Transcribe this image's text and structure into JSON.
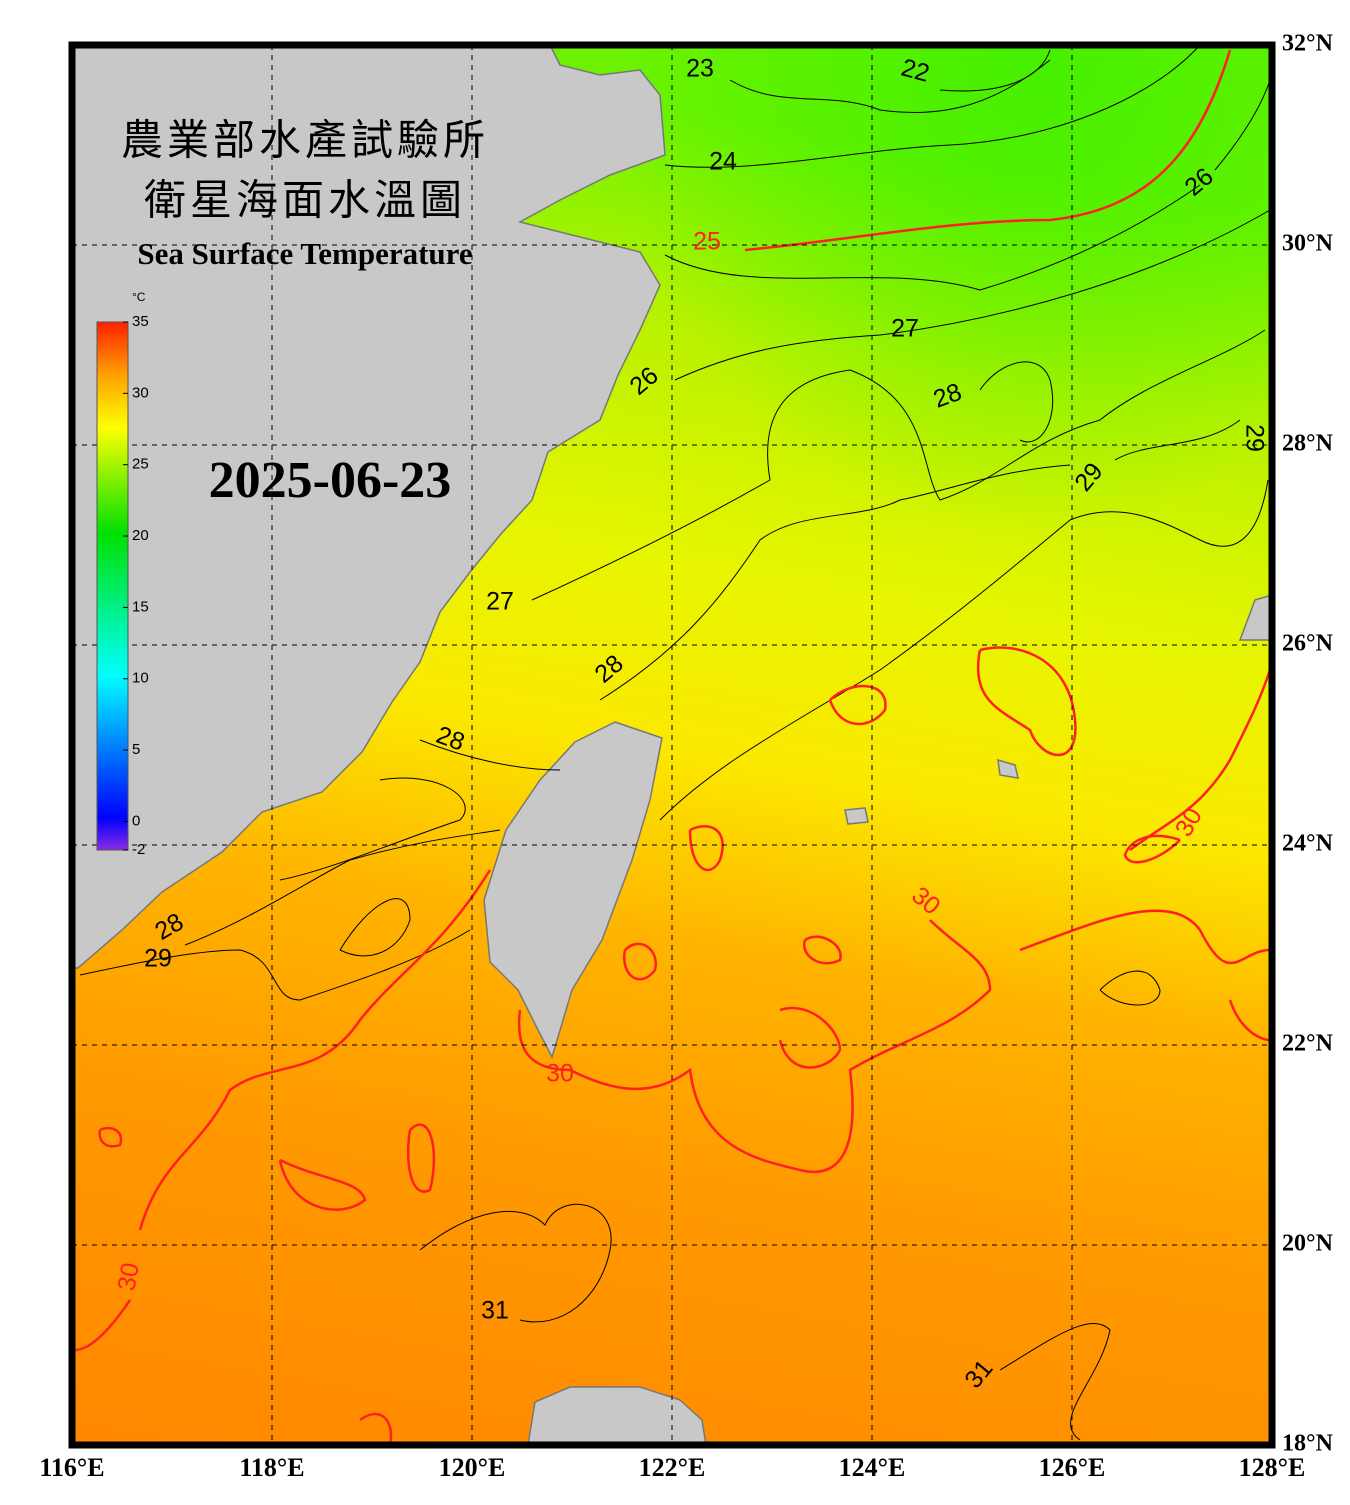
{
  "map": {
    "title": [
      "農業部水產試驗所",
      "衛星海面水溫圖"
    ],
    "subtitle": "Sea Surface Temperature",
    "date": "2025-06-23",
    "xlim": [
      116,
      128
    ],
    "ylim": [
      18,
      32
    ],
    "xticks": [
      {
        "value": 116,
        "label": "116°E"
      },
      {
        "value": 118,
        "label": "118°E"
      },
      {
        "value": 120,
        "label": "120°E"
      },
      {
        "value": 122,
        "label": "122°E"
      },
      {
        "value": 124,
        "label": "124°E"
      },
      {
        "value": 126,
        "label": "126°E"
      },
      {
        "value": 128,
        "label": "128°E"
      }
    ],
    "yticks": [
      {
        "value": 18,
        "label": "18°N"
      },
      {
        "value": 20,
        "label": "20°N"
      },
      {
        "value": 22,
        "label": "22°N"
      },
      {
        "value": 24,
        "label": "24°N"
      },
      {
        "value": 26,
        "label": "26°N"
      },
      {
        "value": 28,
        "label": "28°N"
      },
      {
        "value": 30,
        "label": "30°N"
      },
      {
        "value": 32,
        "label": "32°N"
      }
    ],
    "colorbar": {
      "unit": "°C",
      "lim": [
        -2,
        35
      ],
      "ticks": [
        35,
        30,
        25,
        20,
        15,
        10,
        5,
        0,
        -2
      ]
    },
    "contour_labels": [
      23,
      22,
      24,
      25,
      26,
      27,
      26,
      28,
      29,
      29,
      27,
      28,
      28,
      28,
      29,
      30,
      30,
      30,
      30,
      31,
      31
    ],
    "contour_color": "#000000",
    "major_contour_color": "#ff2020"
  }
}
